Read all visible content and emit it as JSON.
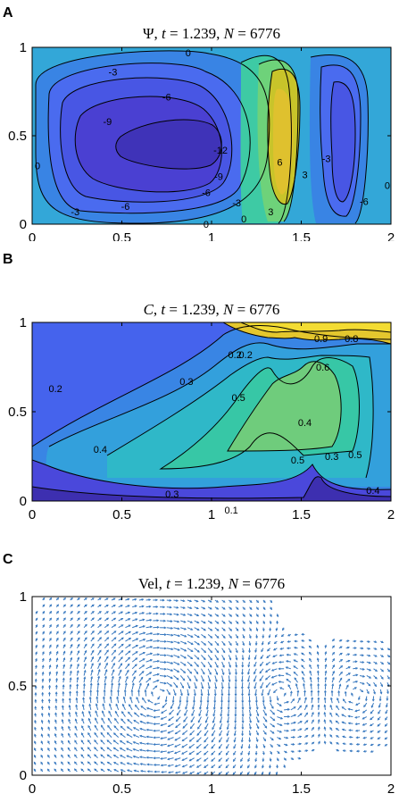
{
  "chart_data": [
    {
      "panel": "A",
      "type": "contour",
      "title": "Ψ, t = 1.239, N = 6776",
      "x_ticks": [
        "0",
        "0.5",
        "1",
        "1.5",
        "2"
      ],
      "y_ticks": [
        "0",
        "0.5",
        "1"
      ],
      "xlim": [
        0,
        2
      ],
      "ylim": [
        0,
        1
      ],
      "contour_labels": [
        {
          "text": "0",
          "x": 0.87,
          "y": 0.97
        },
        {
          "text": "-3",
          "x": 0.45,
          "y": 0.86
        },
        {
          "text": "-6",
          "x": 0.75,
          "y": 0.72
        },
        {
          "text": "-9",
          "x": 0.42,
          "y": 0.58
        },
        {
          "text": "-12",
          "x": 1.05,
          "y": 0.42
        },
        {
          "text": "-9",
          "x": 1.04,
          "y": 0.27
        },
        {
          "text": "-6",
          "x": 0.97,
          "y": 0.18
        },
        {
          "text": "-3",
          "x": 1.14,
          "y": 0.12
        },
        {
          "text": "-6",
          "x": 0.52,
          "y": 0.1
        },
        {
          "text": "-3",
          "x": 0.24,
          "y": 0.07
        },
        {
          "text": "0",
          "x": 0.03,
          "y": 0.33
        },
        {
          "text": "0",
          "x": 0.97,
          "y": 0.0
        },
        {
          "text": "0",
          "x": 1.18,
          "y": 0.03
        },
        {
          "text": "3",
          "x": 1.33,
          "y": 0.07
        },
        {
          "text": "6",
          "x": 1.38,
          "y": 0.35
        },
        {
          "text": "3",
          "x": 1.52,
          "y": 0.28
        },
        {
          "text": "-3",
          "x": 1.64,
          "y": 0.37
        },
        {
          "text": "-6",
          "x": 1.85,
          "y": 0.13
        },
        {
          "text": "0",
          "x": 1.98,
          "y": 0.22
        }
      ]
    },
    {
      "panel": "B",
      "type": "contour",
      "title": "C, t = 1.239, N = 6776",
      "x_ticks": [
        "0",
        "0.5",
        "1",
        "1.5",
        "2"
      ],
      "y_ticks": [
        "0",
        "0.5",
        "1"
      ],
      "xlim": [
        0,
        2
      ],
      "ylim": [
        0,
        1
      ],
      "contour_labels": [
        {
          "text": "0.9",
          "x": 1.61,
          "y": 0.91
        },
        {
          "text": "0.8",
          "x": 1.78,
          "y": 0.91
        },
        {
          "text": "0.2",
          "x": 1.13,
          "y": 0.82
        },
        {
          "text": "0.2",
          "x": 1.19,
          "y": 0.82
        },
        {
          "text": "0.6",
          "x": 1.62,
          "y": 0.75
        },
        {
          "text": "0.3",
          "x": 0.86,
          "y": 0.67
        },
        {
          "text": "0.5",
          "x": 1.15,
          "y": 0.58
        },
        {
          "text": "0.2",
          "x": 0.13,
          "y": 0.63
        },
        {
          "text": "0.4",
          "x": 1.52,
          "y": 0.44
        },
        {
          "text": "0.4",
          "x": 0.38,
          "y": 0.29
        },
        {
          "text": "0.5",
          "x": 1.48,
          "y": 0.23
        },
        {
          "text": "0.3",
          "x": 1.67,
          "y": 0.25
        },
        {
          "text": "0.5",
          "x": 1.8,
          "y": 0.26
        },
        {
          "text": "0.3",
          "x": 0.78,
          "y": 0.04
        },
        {
          "text": "0.4",
          "x": 1.9,
          "y": 0.06
        },
        {
          "text": "0.1",
          "x": 1.11,
          "y": -0.05
        }
      ]
    },
    {
      "panel": "C",
      "type": "quiver",
      "title": "Vel, t = 1.239, N = 6776",
      "x_ticks": [
        "0",
        "0.5",
        "1",
        "1.5",
        "2"
      ],
      "y_ticks": [
        "0",
        "0.5",
        "1"
      ],
      "xlim": [
        0,
        2
      ],
      "ylim": [
        0,
        1
      ],
      "color": "#3778bf"
    }
  ]
}
